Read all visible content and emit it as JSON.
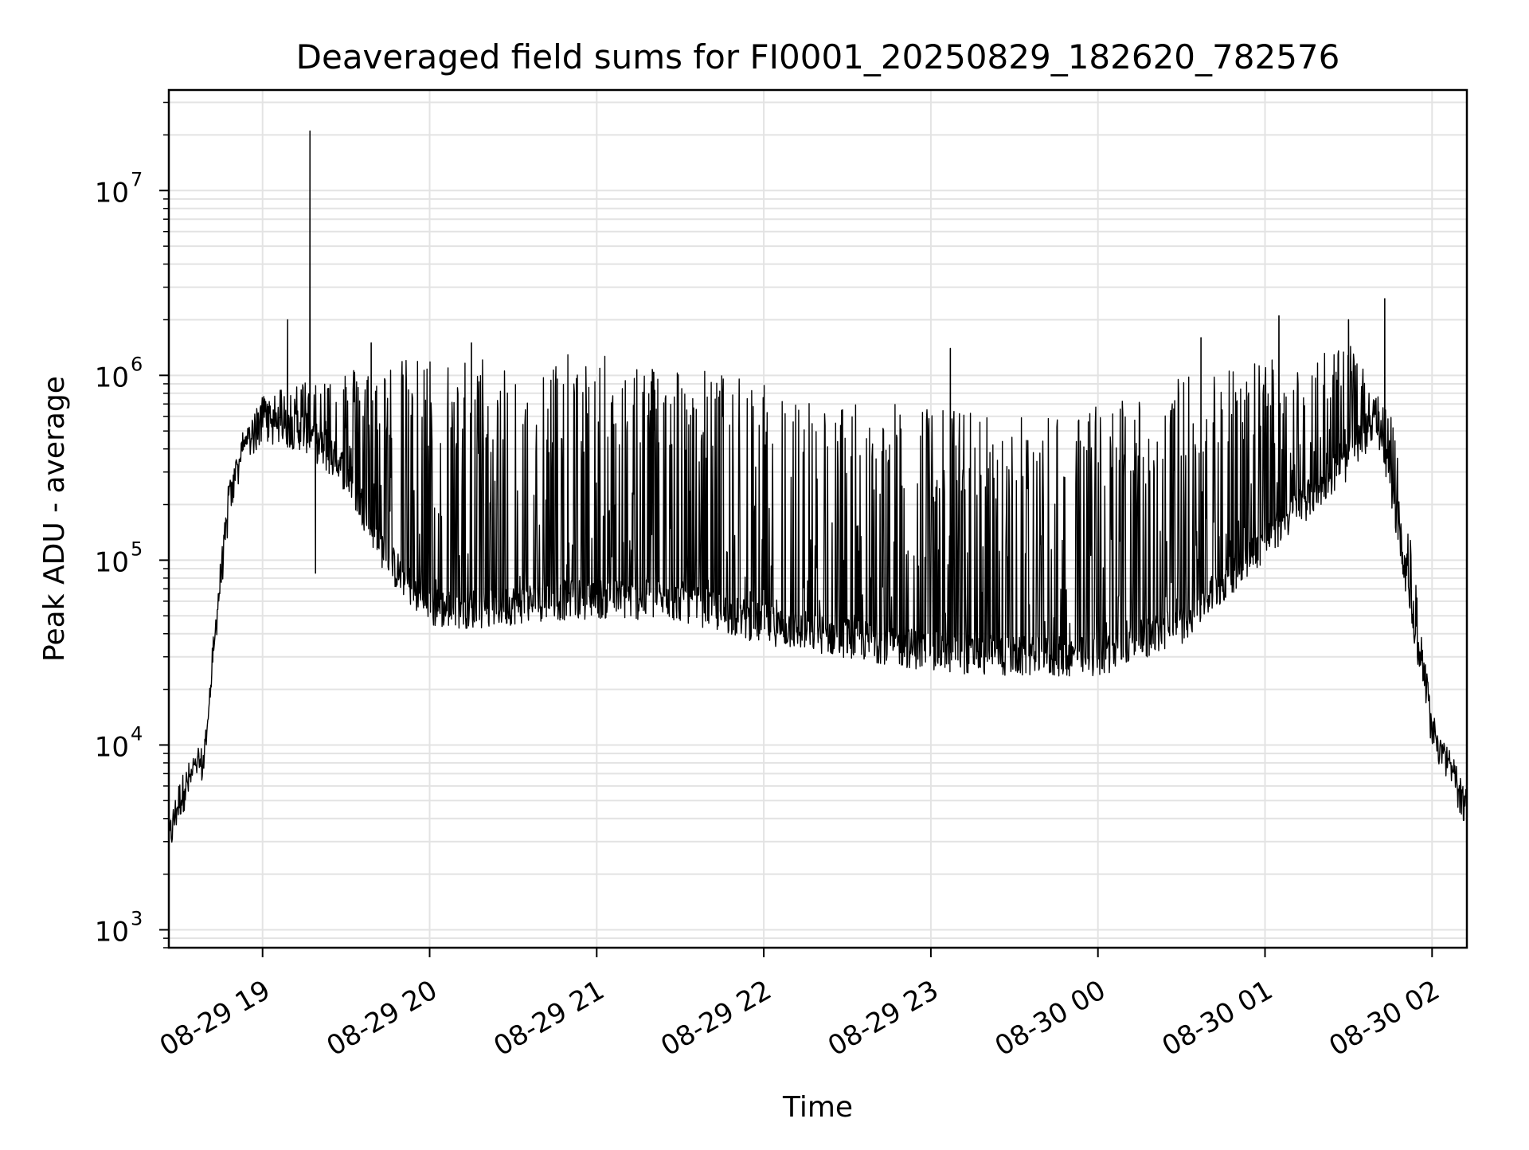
{
  "chart_data": {
    "type": "line",
    "title": "Deaveraged field sums for FI0001_20250829_182620_782576",
    "xlabel": "Time",
    "ylabel": "Peak ADU - average",
    "yscale": "log",
    "ylim": [
      800,
      35000000
    ],
    "xlim": [
      "2025-08-29 18:26:20",
      "2025-08-30 02:12:30"
    ],
    "grid": true,
    "line_color": "#000000",
    "x_ticks": [
      {
        "label": "08-29 19",
        "value": "2025-08-29 19:00"
      },
      {
        "label": "08-29 20",
        "value": "2025-08-29 20:00"
      },
      {
        "label": "08-29 21",
        "value": "2025-08-29 21:00"
      },
      {
        "label": "08-29 22",
        "value": "2025-08-29 22:00"
      },
      {
        "label": "08-29 23",
        "value": "2025-08-29 23:00"
      },
      {
        "label": "08-30 00",
        "value": "2025-08-30 00:00"
      },
      {
        "label": "08-30 01",
        "value": "2025-08-30 01:00"
      },
      {
        "label": "08-30 02",
        "value": "2025-08-30 02:00"
      }
    ],
    "y_ticks": [
      {
        "base": "10",
        "exp": "3",
        "value": 1000
      },
      {
        "base": "10",
        "exp": "4",
        "value": 10000
      },
      {
        "base": "10",
        "exp": "5",
        "value": 100000
      },
      {
        "base": "10",
        "exp": "6",
        "value": 1000000
      },
      {
        "base": "10",
        "exp": "7",
        "value": 10000000
      }
    ],
    "series": [
      {
        "baseline": [
          {
            "x": "2025-08-29 18:26:20",
            "y": 3000
          },
          {
            "x": "2025-08-29 18:30",
            "y": 5000
          },
          {
            "x": "2025-08-29 18:35",
            "y": 7000
          },
          {
            "x": "2025-08-29 18:39",
            "y": 8000
          },
          {
            "x": "2025-08-29 18:44",
            "y": 60000
          },
          {
            "x": "2025-08-29 18:48",
            "y": 200000
          },
          {
            "x": "2025-08-29 18:53",
            "y": 400000
          },
          {
            "x": "2025-08-29 19:00",
            "y": 550000
          },
          {
            "x": "2025-08-29 19:15",
            "y": 500000
          },
          {
            "x": "2025-08-29 19:30",
            "y": 300000
          },
          {
            "x": "2025-08-29 19:45",
            "y": 100000
          },
          {
            "x": "2025-08-29 20:00",
            "y": 55000
          },
          {
            "x": "2025-08-29 20:20",
            "y": 55000
          },
          {
            "x": "2025-08-29 20:40",
            "y": 60000
          },
          {
            "x": "2025-08-29 21:00",
            "y": 62000
          },
          {
            "x": "2025-08-29 21:30",
            "y": 60000
          },
          {
            "x": "2025-08-29 22:00",
            "y": 45000
          },
          {
            "x": "2025-08-29 22:30",
            "y": 38000
          },
          {
            "x": "2025-08-29 23:00",
            "y": 32000
          },
          {
            "x": "2025-08-29 23:30",
            "y": 30000
          },
          {
            "x": "2025-08-30 00:00",
            "y": 30000
          },
          {
            "x": "2025-08-30 00:30",
            "y": 45000
          },
          {
            "x": "2025-08-30 00:50",
            "y": 90000
          },
          {
            "x": "2025-08-30 01:10",
            "y": 180000
          },
          {
            "x": "2025-08-30 01:30",
            "y": 350000
          },
          {
            "x": "2025-08-30 01:40",
            "y": 600000
          },
          {
            "x": "2025-08-30 01:48",
            "y": 150000
          },
          {
            "x": "2025-08-30 01:54",
            "y": 40000
          },
          {
            "x": "2025-08-30 02:00",
            "y": 12000
          },
          {
            "x": "2025-08-30 02:12:30",
            "y": 4500
          }
        ],
        "peak_envelope": [
          {
            "x": "2025-08-29 18:26:20",
            "y": 3500
          },
          {
            "x": "2025-08-29 18:40",
            "y": 12000
          },
          {
            "x": "2025-08-29 18:48",
            "y": 300000
          },
          {
            "x": "2025-08-29 19:00",
            "y": 800000
          },
          {
            "x": "2025-08-29 19:30",
            "y": 1100000
          },
          {
            "x": "2025-08-29 20:00",
            "y": 1300000
          },
          {
            "x": "2025-08-29 21:00",
            "y": 1300000
          },
          {
            "x": "2025-08-29 21:30",
            "y": 1200000
          },
          {
            "x": "2025-08-29 22:00",
            "y": 900000
          },
          {
            "x": "2025-08-29 22:30",
            "y": 700000
          },
          {
            "x": "2025-08-29 23:00",
            "y": 700000
          },
          {
            "x": "2025-08-29 23:30",
            "y": 600000
          },
          {
            "x": "2025-08-30 00:00",
            "y": 700000
          },
          {
            "x": "2025-08-30 00:30",
            "y": 1000000
          },
          {
            "x": "2025-08-30 01:00",
            "y": 1300000
          },
          {
            "x": "2025-08-30 01:30",
            "y": 1500000
          },
          {
            "x": "2025-08-30 01:48",
            "y": 500000
          },
          {
            "x": "2025-08-30 02:00",
            "y": 14000
          },
          {
            "x": "2025-08-30 02:12:30",
            "y": 5000
          }
        ],
        "spikes": [
          {
            "x": "2025-08-29 19:09",
            "y": 2000000
          },
          {
            "x": "2025-08-29 19:17",
            "y": 21000000
          },
          {
            "x": "2025-08-29 19:19",
            "y": 85000
          },
          {
            "x": "2025-08-29 19:39",
            "y": 1500000
          },
          {
            "x": "2025-08-29 20:15",
            "y": 1500000
          },
          {
            "x": "2025-08-29 23:07",
            "y": 1400000
          },
          {
            "x": "2025-08-30 00:37",
            "y": 1600000
          },
          {
            "x": "2025-08-30 01:05",
            "y": 2100000
          },
          {
            "x": "2025-08-30 01:30",
            "y": 2000000
          },
          {
            "x": "2025-08-30 01:43",
            "y": 2600000
          }
        ]
      }
    ]
  }
}
